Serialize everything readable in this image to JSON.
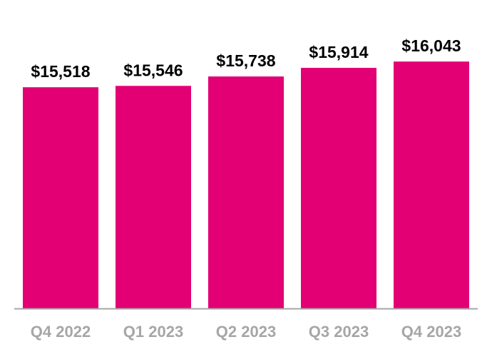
{
  "chart_data": {
    "type": "bar",
    "categories": [
      "Q4 2022",
      "Q1 2023",
      "Q2 2023",
      "Q3 2023",
      "Q4 2023"
    ],
    "values": [
      15518,
      15546,
      15738,
      15914,
      16043
    ],
    "data_labels": [
      "$15,518",
      "$15,546",
      "$15,738",
      "$15,914",
      "$16,043"
    ],
    "title": "",
    "xlabel": "",
    "ylabel": "",
    "ylim": [
      11000,
      17300
    ],
    "grid": false,
    "legend": "none",
    "colors": {
      "bar": "#E20074",
      "axis": "#a6a6a6",
      "tick_label": "#a6a6a6",
      "data_label": "#000000"
    }
  }
}
